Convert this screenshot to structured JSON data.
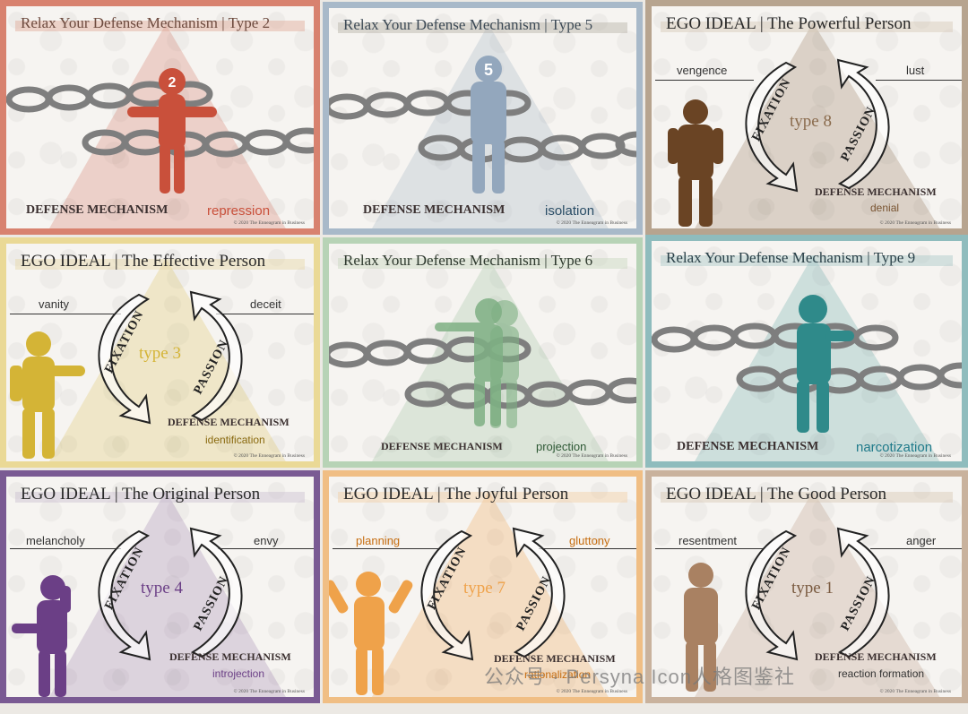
{
  "cards": {
    "t2": {
      "title": "Relax Your Defense Mechanism | Type 2",
      "badge": "2",
      "label": "DEFENSE MECHANISM",
      "mechanism": "repression",
      "copyright": "© 2020 The Enneagram in Business",
      "color": "#c9503b"
    },
    "t5": {
      "title": "Relax Your Defense Mechanism | Type 5",
      "badge": "5",
      "label": "DEFENSE MECHANISM",
      "mechanism": "isolation",
      "copyright": "© 2020 The Enneagram in Business",
      "color": "#93a7bd"
    },
    "t8": {
      "title": "EGO IDEAL | The Powerful Person",
      "left_word": "vengence",
      "right_word": "lust",
      "type_label": "type 8",
      "fixation": "FIXATION",
      "passion": "PASSION",
      "label": "DEFENSE MECHANISM",
      "mechanism": "denial",
      "copyright": "© 2020 The Enneagram in Business",
      "color": "#7a5532"
    },
    "t3": {
      "title": "EGO IDEAL | The Effective Person",
      "left_word": "vanity",
      "right_word": "deceit",
      "type_label": "type 3",
      "fixation": "FIXATION",
      "passion": "PASSION",
      "label": "DEFENSE MECHANISM",
      "mechanism": "identification",
      "copyright": "© 2020 The Enneagram in Business",
      "color": "#d4b436"
    },
    "t6": {
      "title": "Relax Your Defense Mechanism | Type 6",
      "label": "DEFENSE MECHANISM",
      "mechanism": "projection",
      "copyright": "© 2020 The Enneagram in Business",
      "color": "#7fb084"
    },
    "t9": {
      "title": "Relax Your Defense Mechanism | Type 9",
      "label": "DEFENSE MECHANISM",
      "mechanism": "narcotization",
      "copyright": "© 2020 The Enneagram in Business",
      "color": "#2f8a8a"
    },
    "t4": {
      "title": "EGO IDEAL | The Original Person",
      "left_word": "melancholy",
      "right_word": "envy",
      "type_label": "type 4",
      "fixation": "FIXATION",
      "passion": "PASSION",
      "label": "DEFENSE MECHANISM",
      "mechanism": "introjection",
      "copyright": "© 2020 The Enneagram in Business",
      "color": "#6b3f86"
    },
    "t7": {
      "title": "EGO IDEAL | The Joyful Person",
      "left_word": "planning",
      "right_word": "gluttony",
      "type_label": "type 7",
      "fixation": "FIXATION",
      "passion": "PASSION",
      "label": "DEFENSE MECHANISM",
      "mechanism": "rationalization",
      "copyright": "© 2020 The Enneagram in Business",
      "color": "#efa24a"
    },
    "t1": {
      "title": "EGO IDEAL | The Good Person",
      "left_word": "resentment",
      "right_word": "anger",
      "type_label": "type 1",
      "fixation": "FIXATION",
      "passion": "PASSION",
      "label": "DEFENSE MECHANISM",
      "mechanism": "reaction formation",
      "copyright": "© 2020 The Enneagram in Business",
      "color": "#a98162"
    }
  },
  "watermark": "公众号 · Persyna Icon人格图鉴社"
}
